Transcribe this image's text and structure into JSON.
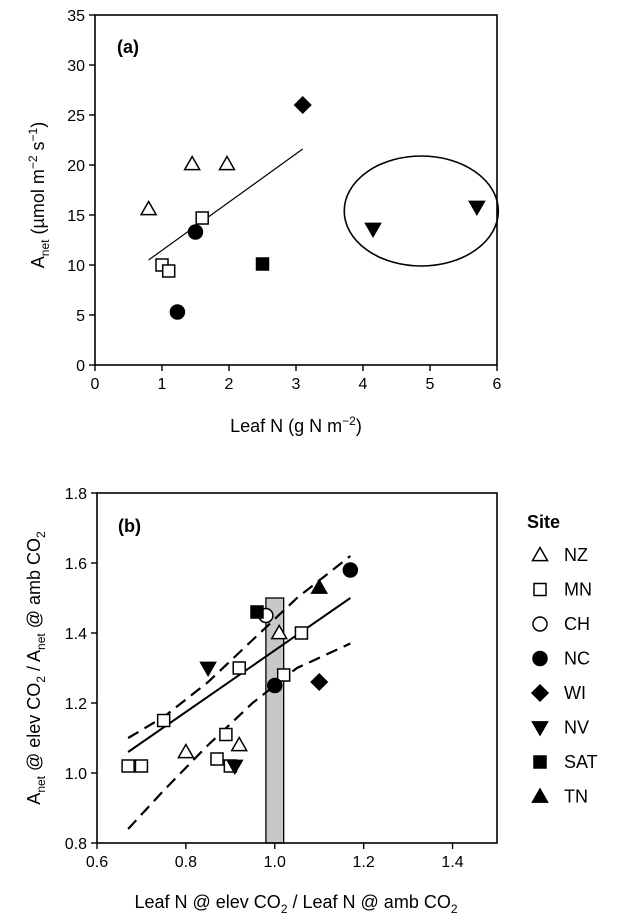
{
  "chart_data": [
    {
      "panel": "(a)",
      "type": "scatter",
      "xlim": [
        0,
        6
      ],
      "ylim": [
        0,
        35
      ],
      "xticks": [
        "0",
        "1",
        "2",
        "3",
        "4",
        "5",
        "6"
      ],
      "yticks": [
        "0",
        "5",
        "10",
        "15",
        "20",
        "25",
        "30",
        "35"
      ],
      "xlabel": {
        "text": "Leaf N (g N m",
        "sup": "−2",
        "close": ")"
      },
      "ylabel": {
        "main": "A",
        "sub": "net",
        "text": " (µmol m",
        "sup1": "−2",
        "mid": " s",
        "sup2": "−1",
        "close": ")"
      },
      "points": [
        {
          "site": "NZ",
          "x": 0.8,
          "y": 15.6
        },
        {
          "site": "NZ",
          "x": 1.45,
          "y": 20.1
        },
        {
          "site": "NZ",
          "x": 1.97,
          "y": 20.1
        },
        {
          "site": "MN",
          "x": 1.0,
          "y": 10.0
        },
        {
          "site": "MN",
          "x": 1.1,
          "y": 9.4
        },
        {
          "site": "MN",
          "x": 1.6,
          "y": 14.7
        },
        {
          "site": "NC",
          "x": 1.23,
          "y": 5.3
        },
        {
          "site": "NC",
          "x": 1.5,
          "y": 13.3
        },
        {
          "site": "WI",
          "x": 3.1,
          "y": 26.0
        },
        {
          "site": "NV",
          "x": 4.15,
          "y": 13.6
        },
        {
          "site": "NV",
          "x": 5.7,
          "y": 15.8
        },
        {
          "site": "SAT",
          "x": 2.5,
          "y": 10.1
        }
      ],
      "regression": [
        [
          0.8,
          10.5
        ],
        [
          3.1,
          21.6
        ]
      ],
      "ellipse": {
        "cx": 4.87,
        "cy": 15.4,
        "rx": 1.15,
        "ry": 5.5
      }
    },
    {
      "panel": "(b)",
      "type": "scatter",
      "xlim": [
        0.6,
        1.5
      ],
      "ylim": [
        0.8,
        1.8
      ],
      "xticks": [
        "0.6",
        "0.8",
        "1.0",
        "1.2",
        "1.4"
      ],
      "yticks": [
        "0.8",
        "1.0",
        "1.2",
        "1.4",
        "1.6",
        "1.8"
      ],
      "xlabel": {
        "a": "Leaf N @ elev CO",
        "asub": "2",
        "b": " / Leaf N @ amb CO",
        "bsub": "2"
      },
      "ylabel": {
        "a": "A",
        "asub": "net",
        "b": " @ elev CO",
        "bsub": "2",
        "c": " / A",
        "csub": "net",
        "d": " @ amb CO",
        "dsub": "2"
      },
      "points": [
        {
          "site": "NZ",
          "x": 0.8,
          "y": 1.06
        },
        {
          "site": "NZ",
          "x": 0.92,
          "y": 1.08
        },
        {
          "site": "NZ",
          "x": 1.01,
          "y": 1.4
        },
        {
          "site": "MN",
          "x": 0.67,
          "y": 1.02
        },
        {
          "site": "MN",
          "x": 0.7,
          "y": 1.02
        },
        {
          "site": "MN",
          "x": 0.75,
          "y": 1.15
        },
        {
          "site": "MN",
          "x": 0.87,
          "y": 1.04
        },
        {
          "site": "MN",
          "x": 0.89,
          "y": 1.11
        },
        {
          "site": "MN",
          "x": 0.9,
          "y": 1.02
        },
        {
          "site": "MN",
          "x": 0.92,
          "y": 1.3
        },
        {
          "site": "MN",
          "x": 1.02,
          "y": 1.28
        },
        {
          "site": "MN",
          "x": 1.06,
          "y": 1.4
        },
        {
          "site": "CH",
          "x": 0.98,
          "y": 1.45
        },
        {
          "site": "NC",
          "x": 1.0,
          "y": 1.25
        },
        {
          "site": "NC",
          "x": 1.17,
          "y": 1.58
        },
        {
          "site": "WI",
          "x": 1.1,
          "y": 1.26
        },
        {
          "site": "NV",
          "x": 0.85,
          "y": 1.3
        },
        {
          "site": "NV",
          "x": 0.91,
          "y": 1.02
        },
        {
          "site": "SAT",
          "x": 0.96,
          "y": 1.46
        },
        {
          "site": "TN",
          "x": 1.1,
          "y": 1.53
        }
      ],
      "regression": [
        [
          0.67,
          1.06
        ],
        [
          1.17,
          1.5
        ]
      ],
      "ci_upper": [
        [
          0.67,
          1.1
        ],
        [
          0.75,
          1.16
        ],
        [
          0.85,
          1.26
        ],
        [
          0.95,
          1.38
        ],
        [
          1.05,
          1.5
        ],
        [
          1.17,
          1.62
        ]
      ],
      "ci_lower": [
        [
          0.67,
          0.84
        ],
        [
          0.75,
          0.95
        ],
        [
          0.85,
          1.08
        ],
        [
          0.95,
          1.2
        ],
        [
          1.05,
          1.3
        ],
        [
          1.17,
          1.37
        ]
      ],
      "bar": {
        "x0": 0.98,
        "x1": 1.02,
        "y0": 0.8,
        "y1": 1.5,
        "color": "#c8c8c8"
      }
    }
  ],
  "legend": {
    "title": "Site",
    "items": [
      {
        "label": "NZ",
        "marker": "triangle-up-open"
      },
      {
        "label": "MN",
        "marker": "square-open"
      },
      {
        "label": "CH",
        "marker": "circle-open"
      },
      {
        "label": "NC",
        "marker": "circle-filled"
      },
      {
        "label": "WI",
        "marker": "diamond-filled"
      },
      {
        "label": "NV",
        "marker": "triangle-down-filled"
      },
      {
        "label": "SAT",
        "marker": "square-filled"
      },
      {
        "label": "TN",
        "marker": "triangle-up-filled"
      }
    ]
  },
  "site_markers": {
    "NZ": "triangle-up-open",
    "MN": "square-open",
    "CH": "circle-open",
    "NC": "circle-filled",
    "WI": "diamond-filled",
    "NV": "triangle-down-filled",
    "SAT": "square-filled",
    "TN": "triangle-up-filled"
  }
}
